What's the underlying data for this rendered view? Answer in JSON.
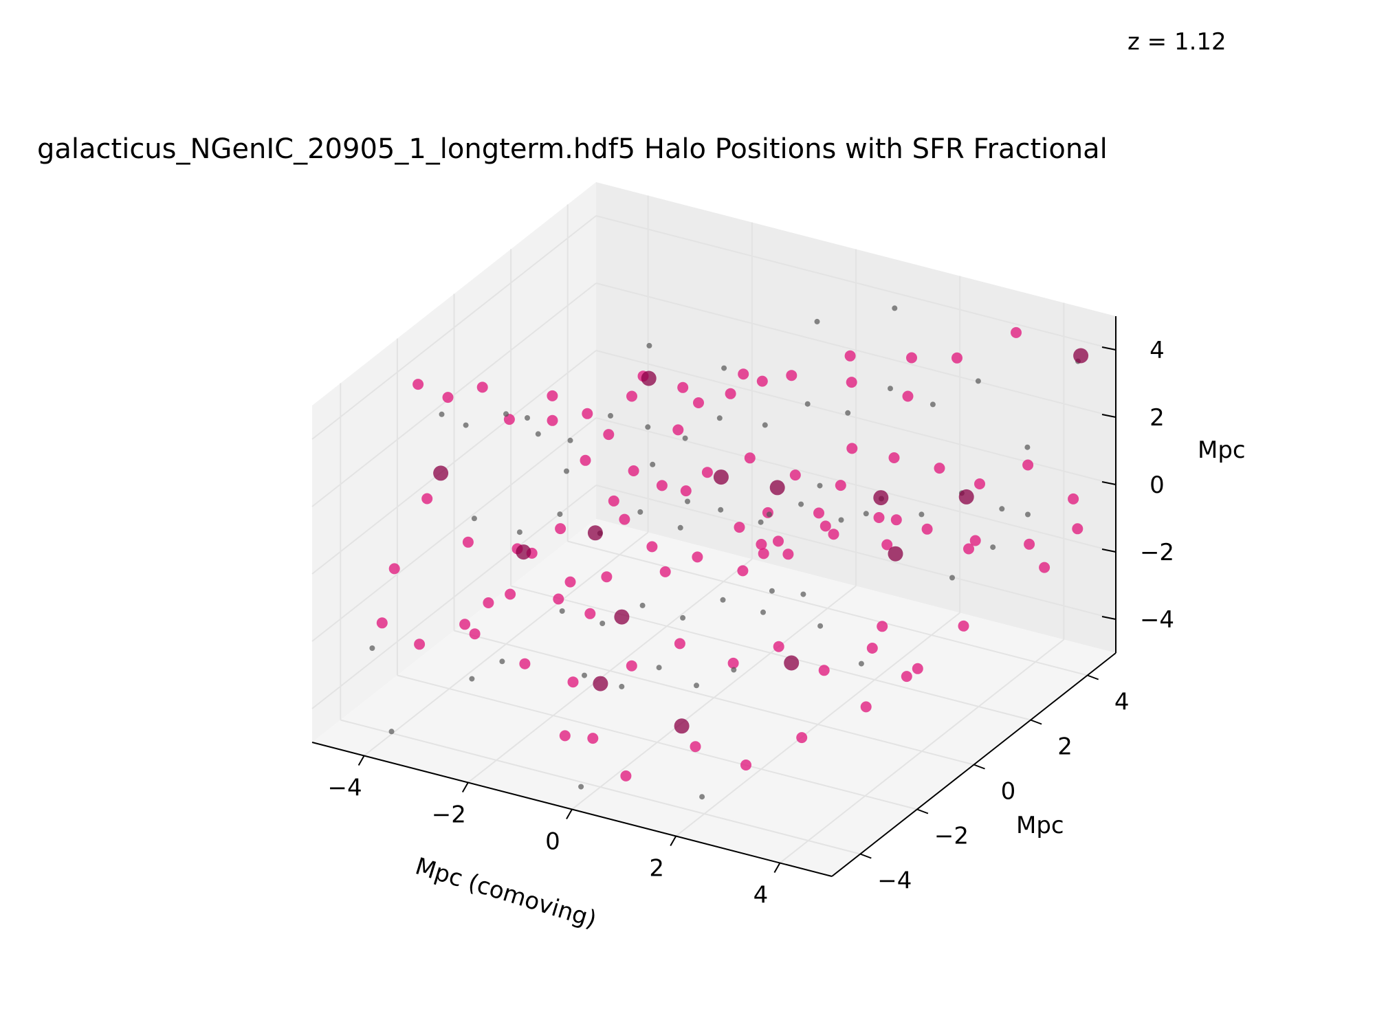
{
  "figure": {
    "redshift_label": "z = 1.12",
    "title": "galacticus_NGenIC_20905_1_longterm.hdf5 Halo Positions with SFR Fractional"
  },
  "chart_data": {
    "type": "scatter",
    "projection": "3d",
    "title": "galacticus_NGenIC_20905_1_longterm.hdf5 Halo Positions with SFR Fractional",
    "xlabel": "Mpc (comoving)",
    "ylabel": "Mpc",
    "zlabel": "Mpc",
    "xlim": [
      -5,
      5
    ],
    "ylim": [
      -5,
      5
    ],
    "zlim": [
      -5,
      5
    ],
    "x_ticks": [
      -4,
      -2,
      0,
      2,
      4
    ],
    "y_ticks": [
      -4,
      -2,
      0,
      2,
      4
    ],
    "z_ticks": [
      -4,
      -2,
      0,
      2,
      4
    ],
    "x_tick_labels": [
      "−4",
      "−2",
      "0",
      "2",
      "4"
    ],
    "y_tick_labels": [
      "−4",
      "−2",
      "0",
      "2",
      "4"
    ],
    "z_tick_labels": [
      "−4",
      "−2",
      "0",
      "2",
      "4"
    ],
    "grid": true,
    "colors": {
      "star_forming": "#e0197d",
      "quiescent": "#555555",
      "dark": "#8a0046"
    },
    "series": [
      {
        "marker": "star_forming",
        "points": [
          [
            -4.6,
            -2.0,
            3.8
          ],
          [
            -4.3,
            -1.5,
            3.2
          ],
          [
            -3.8,
            -1.2,
            3.5
          ],
          [
            -3.5,
            -0.8,
            2.4
          ],
          [
            -4.1,
            -2.6,
            1.0
          ],
          [
            -3.0,
            -0.2,
            2.9
          ],
          [
            -2.6,
            0.3,
            2.2
          ],
          [
            -2.2,
            -0.5,
            1.5
          ],
          [
            -1.8,
            0.8,
            3.3
          ],
          [
            -1.2,
            1.1,
            3.0
          ],
          [
            -0.8,
            0.2,
            2.5
          ],
          [
            -0.2,
            1.4,
            3.6
          ],
          [
            0.4,
            2.0,
            3.4
          ],
          [
            1.2,
            2.6,
            3.9
          ],
          [
            2.0,
            3.3,
            3.7
          ],
          [
            2.6,
            3.8,
            3.6
          ],
          [
            3.3,
            4.6,
            4.1
          ],
          [
            -3.2,
            -2.8,
            0.2
          ],
          [
            -2.8,
            -1.8,
            -0.5
          ],
          [
            -2.3,
            -1.2,
            -0.1
          ],
          [
            -1.6,
            -0.6,
            0.6
          ],
          [
            -1.0,
            0.0,
            0.9
          ],
          [
            -0.4,
            0.5,
            1.2
          ],
          [
            0.2,
            0.9,
            1.6
          ],
          [
            0.8,
            1.4,
            1.0
          ],
          [
            1.4,
            1.9,
            0.6
          ],
          [
            2.1,
            2.5,
            1.3
          ],
          [
            2.7,
            3.0,
            0.9
          ],
          [
            3.2,
            3.5,
            0.3
          ],
          [
            3.8,
            4.1,
            0.7
          ],
          [
            4.4,
            4.6,
            -0.4
          ],
          [
            4.7,
            4.2,
            -0.9
          ],
          [
            4.1,
            3.6,
            -1.2
          ],
          [
            3.5,
            2.8,
            -0.8
          ],
          [
            2.9,
            2.2,
            -0.3
          ],
          [
            2.3,
            1.6,
            0.2
          ],
          [
            1.7,
            1.1,
            -0.2
          ],
          [
            1.1,
            0.6,
            -0.7
          ],
          [
            0.5,
            0.1,
            -1.1
          ],
          [
            -0.1,
            -0.4,
            -0.6
          ],
          [
            -0.7,
            -0.9,
            -0.2
          ],
          [
            -1.3,
            -1.4,
            -1.0
          ],
          [
            -1.9,
            -2.0,
            -1.5
          ],
          [
            -2.5,
            -2.6,
            -1.2
          ],
          [
            -3.1,
            -3.1,
            -2.0
          ],
          [
            -3.7,
            -3.6,
            -2.5
          ],
          [
            -4.2,
            -4.0,
            -1.8
          ],
          [
            -3.4,
            -2.2,
            -3.0
          ],
          [
            -2.0,
            -3.0,
            -2.8
          ],
          [
            -1.4,
            -2.4,
            -3.5
          ],
          [
            -0.6,
            -1.8,
            -3.1
          ],
          [
            0.0,
            -1.2,
            -2.6
          ],
          [
            0.7,
            -0.6,
            -3.3
          ],
          [
            1.3,
            -0.1,
            -2.9
          ],
          [
            1.9,
            0.4,
            -3.7
          ],
          [
            2.5,
            1.0,
            -3.2
          ],
          [
            3.1,
            1.5,
            -3.9
          ],
          [
            -0.9,
            -3.6,
            -4.1
          ],
          [
            -0.2,
            -3.9,
            -3.7
          ],
          [
            0.6,
            -4.2,
            -4.3
          ],
          [
            1.5,
            -3.4,
            -3.6
          ],
          [
            2.2,
            -2.9,
            -4.2
          ],
          [
            3.0,
            -2.4,
            -3.4
          ],
          [
            3.8,
            -1.6,
            -2.7
          ],
          [
            4.2,
            -0.9,
            -2.1
          ],
          [
            -1.1,
            0.3,
            -1.9
          ],
          [
            0.3,
            1.2,
            -1.4
          ],
          [
            1.0,
            2.1,
            -0.9
          ],
          [
            1.8,
            2.8,
            -1.6
          ],
          [
            -2.4,
            1.5,
            2.0
          ],
          [
            -1.5,
            2.2,
            1.7
          ],
          [
            -0.6,
            2.8,
            2.3
          ],
          [
            0.9,
            3.2,
            2.6
          ],
          [
            1.6,
            3.9,
            2.0
          ],
          [
            -3.6,
            0.9,
            1.2
          ],
          [
            -2.9,
            1.6,
            0.6
          ],
          [
            -0.3,
            -2.6,
            1.9
          ],
          [
            0.5,
            -1.9,
            2.6
          ],
          [
            1.2,
            -1.3,
            1.4
          ],
          [
            2.4,
            -0.7,
            1.9
          ],
          [
            3.4,
            0.2,
            1.5
          ],
          [
            4.3,
            1.1,
            0.4
          ],
          [
            -4.4,
            -3.2,
            -0.8
          ],
          [
            -2.1,
            -4.1,
            -0.3
          ],
          [
            -1.7,
            -3.3,
            0.8
          ],
          [
            -0.8,
            -2.9,
            -0.9
          ],
          [
            2.8,
            0.8,
            -2.3
          ],
          [
            3.6,
            2.2,
            -2.9
          ],
          [
            4.5,
            3.4,
            -1.6
          ],
          [
            -0.4,
            2.4,
            -2.2
          ],
          [
            0.1,
            0.4,
            3.8
          ],
          [
            -1.0,
            -1.0,
            2.0
          ],
          [
            0.6,
            0.8,
            0.2
          ],
          [
            1.4,
            -0.3,
            0.4
          ],
          [
            2.0,
            1.2,
            2.4
          ],
          [
            -2.6,
            -0.3,
            -2.4
          ]
        ]
      },
      {
        "marker": "quiescent",
        "points": [
          [
            -4.2,
            -1.9,
            3.0
          ],
          [
            -3.9,
            -1.6,
            2.6
          ],
          [
            -3.4,
            -1.1,
            2.8
          ],
          [
            -3.0,
            -0.7,
            2.1
          ],
          [
            -2.6,
            -0.3,
            1.8
          ],
          [
            -2.1,
            0.2,
            2.4
          ],
          [
            -1.6,
            0.6,
            2.0
          ],
          [
            -1.1,
            1.0,
            1.6
          ],
          [
            -0.6,
            1.3,
            2.2
          ],
          [
            0.0,
            1.8,
            1.9
          ],
          [
            0.6,
            2.2,
            2.5
          ],
          [
            1.1,
            2.7,
            2.1
          ],
          [
            1.7,
            3.1,
            2.8
          ],
          [
            2.3,
            3.5,
            2.3
          ],
          [
            2.9,
            4.0,
            2.9
          ],
          [
            -3.3,
            -2.4,
            0.6
          ],
          [
            -2.7,
            -1.9,
            0.1
          ],
          [
            -2.2,
            -1.4,
            0.5
          ],
          [
            -1.7,
            -0.9,
            -0.2
          ],
          [
            -1.2,
            -0.4,
            0.3
          ],
          [
            -0.7,
            0.1,
            -0.3
          ],
          [
            -0.2,
            0.6,
            0.1
          ],
          [
            0.3,
            1.1,
            -0.4
          ],
          [
            0.8,
            1.6,
            0.0
          ],
          [
            1.3,
            2.1,
            -0.6
          ],
          [
            1.8,
            2.6,
            -0.1
          ],
          [
            2.3,
            3.1,
            -0.7
          ],
          [
            2.8,
            3.6,
            -0.2
          ],
          [
            3.3,
            4.1,
            -0.8
          ],
          [
            -1.5,
            -2.6,
            -1.3
          ],
          [
            -1.0,
            -2.1,
            -1.8
          ],
          [
            -0.5,
            -1.6,
            -1.4
          ],
          [
            0.0,
            -1.1,
            -1.9
          ],
          [
            0.5,
            -0.6,
            -1.5
          ],
          [
            1.0,
            -0.1,
            -2.0
          ],
          [
            1.5,
            0.4,
            -1.6
          ],
          [
            -0.8,
            -3.1,
            -2.6
          ],
          [
            -0.3,
            -2.7,
            -3.0
          ],
          [
            0.2,
            -2.3,
            -2.5
          ],
          [
            0.7,
            -1.9,
            -3.1
          ],
          [
            1.2,
            -1.5,
            -2.7
          ],
          [
            -2.8,
            -3.4,
            -3.3
          ],
          [
            -2.0,
            -3.8,
            -2.2
          ],
          [
            3.6,
            1.8,
            -1.2
          ],
          [
            4.0,
            2.5,
            -0.6
          ],
          [
            4.4,
            3.0,
            0.2
          ],
          [
            3.9,
            3.9,
            1.4
          ],
          [
            4.6,
            4.4,
            3.9
          ],
          [
            -4.5,
            -3.8,
            -2.8
          ],
          [
            -3.8,
            -4.4,
            -4.6
          ],
          [
            -0.1,
            -4.5,
            -4.7
          ],
          [
            1.9,
            -3.9,
            -4.6
          ],
          [
            0.4,
            2.9,
            4.4
          ],
          [
            1.4,
            3.8,
            4.6
          ],
          [
            -1.9,
            1.2,
            3.9
          ],
          [
            -0.9,
            2.0,
            3.1
          ],
          [
            2.6,
            0.6,
            1.1
          ],
          [
            3.0,
            -0.3,
            -2.6
          ],
          [
            -3.7,
            0.2,
            1.7
          ],
          [
            -0.4,
            -0.2,
            0.8
          ],
          [
            0.9,
            0.3,
            0.6
          ],
          [
            1.6,
            0.8,
            1.4
          ],
          [
            -1.4,
            0.4,
            1.1
          ],
          [
            -2.4,
            -0.8,
            1.3
          ],
          [
            2.1,
            -1.8,
            0.2
          ],
          [
            2.7,
            -1.2,
            -1.0
          ]
        ]
      },
      {
        "marker": "dark",
        "points": [
          [
            -4.0,
            -2.3,
            1.6
          ],
          [
            -2.9,
            -1.4,
            -0.9
          ],
          [
            -1.9,
            -0.7,
            -0.4
          ],
          [
            -0.3,
            0.8,
            0.9
          ],
          [
            0.4,
            1.5,
            0.4
          ],
          [
            1.9,
            2.4,
            0.1
          ],
          [
            3.0,
            3.4,
            -0.1
          ],
          [
            4.6,
            4.5,
            4.0
          ],
          [
            -0.6,
            -2.9,
            -2.9
          ],
          [
            0.8,
            -2.6,
            -3.8
          ],
          [
            1.6,
            -0.2,
            -3.2
          ],
          [
            -1.8,
            1.0,
            3.1
          ],
          [
            2.4,
            2.0,
            -1.1
          ],
          [
            -0.9,
            -1.6,
            -1.9
          ]
        ]
      }
    ]
  }
}
